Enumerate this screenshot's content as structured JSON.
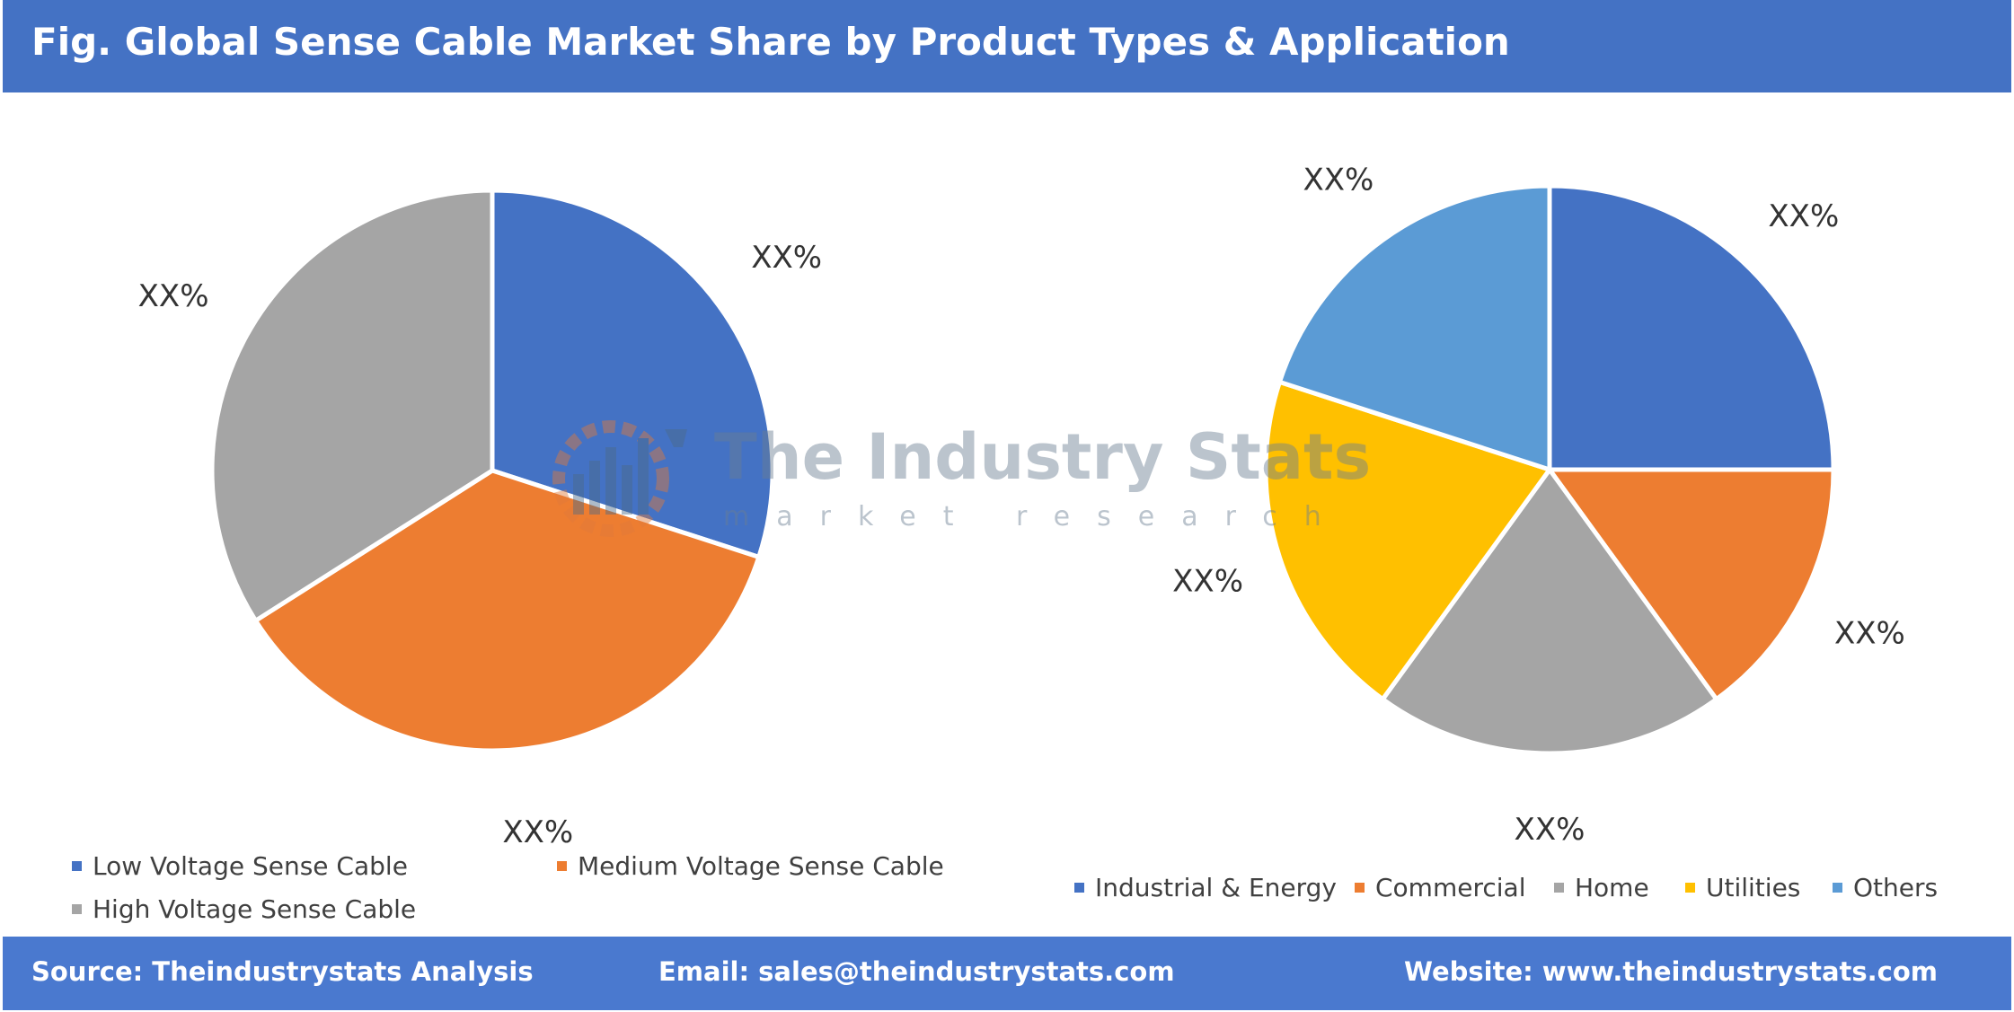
{
  "header": {
    "title": "Fig. Global Sense Cable Market Share by Product Types & Application"
  },
  "footer": {
    "source": "Source: Theindustrystats Analysis",
    "email": "Email: sales@theindustrystats.com",
    "website": "Website: www.theindustrystats.com"
  },
  "watermark": {
    "name": "The Industry Stats",
    "tagline": "market research"
  },
  "chart_data": [
    {
      "type": "pie",
      "title": "",
      "categories": [
        "Low Voltage Sense Cable",
        "Medium Voltage Sense Cable",
        "High Voltage Sense Cable"
      ],
      "values": [
        30,
        36,
        34
      ],
      "data_labels": [
        "XX%",
        "XX%",
        "XX%"
      ],
      "colors": [
        "#4472c4",
        "#ed7d31",
        "#a5a5a5"
      ],
      "legend_position": "bottom"
    },
    {
      "type": "pie",
      "title": "",
      "categories": [
        "Industrial & Energy",
        "Commercial",
        "Home",
        "Utilities",
        "Others"
      ],
      "values": [
        25,
        15,
        20,
        20,
        20
      ],
      "data_labels": [
        "XX%",
        "XX%",
        "XX%",
        "XX%",
        "XX%"
      ],
      "colors": [
        "#4472c4",
        "#ed7d31",
        "#a5a5a5",
        "#ffc000",
        "#5b9bd5"
      ],
      "legend_position": "bottom"
    }
  ]
}
